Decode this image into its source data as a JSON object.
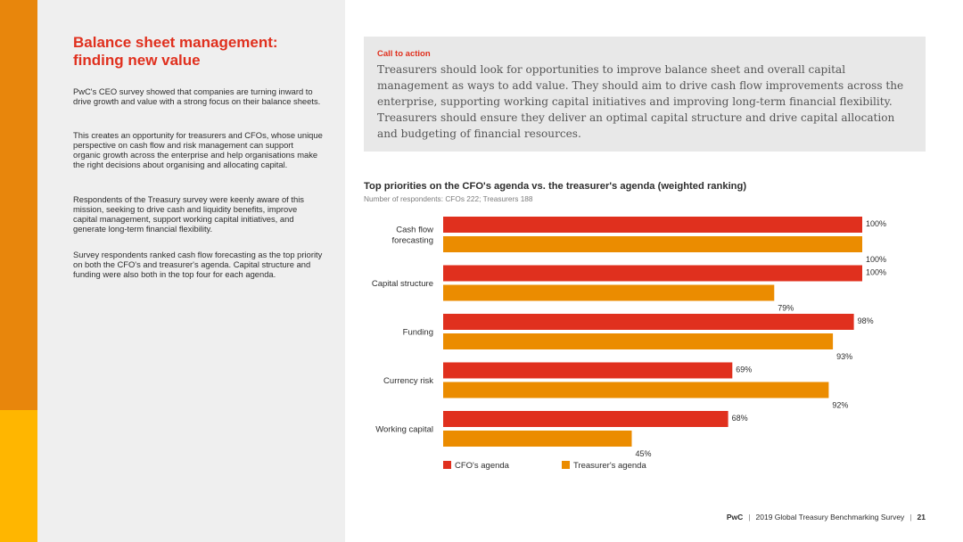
{
  "left": {
    "title_line1": "Balance sheet management:",
    "title_line2": "finding new value",
    "paragraphs": [
      "PwC's CEO survey showed that companies are turning inward to drive growth and value with a strong focus on their balance sheets.",
      "This creates an opportunity for treasurers and CFOs, whose unique perspective on cash flow and risk management can support organic growth across the enterprise and help organisations make the right decisions about organising and allocating capital.",
      "Respondents of the Treasury survey were keenly aware of this mission, seeking to drive cash and liquidity benefits, improve capital management, support working capital initiatives, and generate long-term financial flexibility.",
      "Survey respondents ranked cash flow forecasting as the top priority on both the CFO's and treasurer's agenda. Capital structure and funding were also both in the top four for each agenda."
    ]
  },
  "cta": {
    "label": "Call to action",
    "text": "Treasurers should look for opportunities to improve balance sheet and overall capital management as ways to add value. They should aim to drive cash flow improvements across the enterprise, supporting working capital initiatives and improving long-term financial flexibility. Treasurers should ensure they deliver an optimal capital structure and drive capital allocation and budgeting of financial resources."
  },
  "chart_data": {
    "type": "bar",
    "orientation": "horizontal",
    "title": "Top priorities on the CFO's agenda vs. the treasurer's agenda (weighted ranking)",
    "subtitle": "Number of respondents: CFOs 222; Treasurers 188",
    "categories": [
      "Cash flow forecasting",
      "Capital structure",
      "Funding",
      "Currency risk",
      "Working capital"
    ],
    "series": [
      {
        "name": "CFO's agenda",
        "color": "#e0301e",
        "values": [
          100,
          100,
          98,
          69,
          68
        ],
        "labels": [
          "100%",
          "100%",
          "98%",
          "69%",
          "68%"
        ]
      },
      {
        "name": "Treasurer's agenda",
        "color": "#eb8c00",
        "values": [
          100,
          79,
          93,
          92,
          45
        ],
        "labels": [
          "100%",
          "79%",
          "93%",
          "92%",
          "45%"
        ]
      }
    ],
    "xlim": [
      0,
      100
    ],
    "grid": false,
    "legend": "bottom-left"
  },
  "colors": {
    "accent_red": "#e0301e",
    "accent_orange": "#eb8c00",
    "strip_orange": "#e8860c",
    "strip_yellow": "#ffb600"
  },
  "footer": {
    "brand": "PwC",
    "survey": "2019 Global Treasury Benchmarking Survey",
    "page": "21"
  }
}
